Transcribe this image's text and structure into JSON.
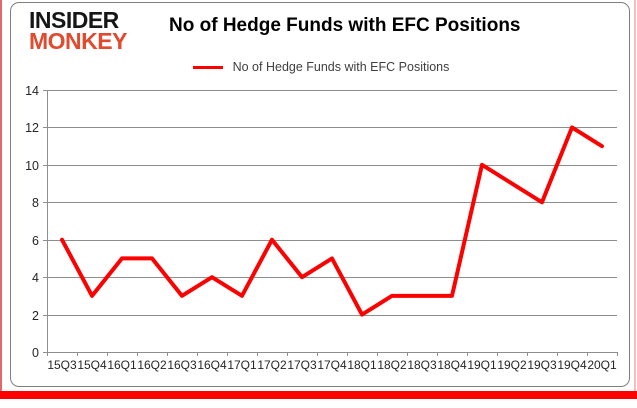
{
  "logo": {
    "line1": "INSIDER",
    "line2": "MONKEY"
  },
  "title": "No of Hedge Funds with EFC Positions",
  "legend": {
    "label": "No of Hedge Funds with EFC Positions"
  },
  "colors": {
    "series_line": "#fb0200",
    "logo_accent": "#e04a2f",
    "logo_dark": "#161616",
    "grid": "#8e8e8e",
    "axis_text": "#262626",
    "card_border": "#7f7f7f",
    "bottom_bar": "#fb0200"
  },
  "chart_data": {
    "type": "line",
    "title": "No of Hedge Funds with EFC Positions",
    "categories": [
      "15Q3",
      "15Q4",
      "16Q1",
      "16Q2",
      "16Q3",
      "16Q4",
      "17Q1",
      "17Q2",
      "17Q3",
      "17Q4",
      "18Q1",
      "18Q2",
      "18Q3",
      "18Q4",
      "19Q1",
      "19Q2",
      "19Q3",
      "19Q4",
      "20Q1"
    ],
    "series": [
      {
        "name": "No of Hedge Funds with EFC Positions",
        "values": [
          6,
          3,
          5,
          5,
          3,
          4,
          3,
          6,
          4,
          5,
          2,
          3,
          3,
          3,
          10,
          9,
          8,
          12,
          11
        ]
      }
    ],
    "xlabel": "",
    "ylabel": "",
    "ylim": [
      0,
      14
    ],
    "yticks": [
      0,
      2,
      4,
      6,
      8,
      10,
      12,
      14
    ],
    "grid": true,
    "legend_position": "top-center"
  }
}
